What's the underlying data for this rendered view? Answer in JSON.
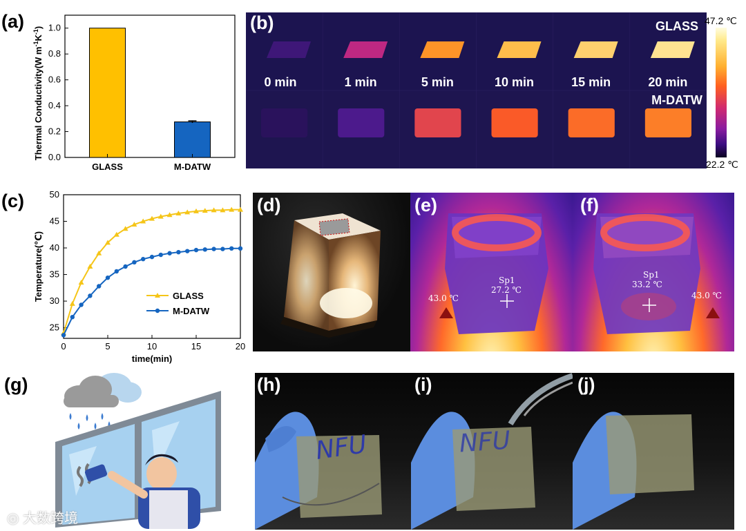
{
  "panel_labels": {
    "a": "(a)",
    "b": "(b)",
    "c": "(c)",
    "d": "(d)",
    "e": "(e)",
    "f": "(f)",
    "g": "(g)",
    "h": "(h)",
    "i": "(i)",
    "j": "(j)"
  },
  "chart_data": [
    {
      "type": "bar",
      "panel": "(a)",
      "categories": [
        "GLASS",
        "M-DATW"
      ],
      "values": [
        1.0,
        0.275
      ],
      "error": [
        0,
        0.008
      ],
      "colors": [
        "#FFC000",
        "#1565C0"
      ],
      "ylabel_main": "Thermal Conductivity(W m",
      "ylabel_sup1": "-1",
      "ylabel_mid": "K",
      "ylabel_sup2": "-1",
      "ylabel_end": ")",
      "ylim": [
        0,
        1.1
      ],
      "yticks": [
        "0.0",
        "0.2",
        "0.4",
        "0.6",
        "0.8",
        "1.0"
      ]
    },
    {
      "type": "line",
      "panel": "(c)",
      "xlabel": "time(min)",
      "ylabel": "Temperature(℃)",
      "xlim": [
        0,
        20
      ],
      "ylim": [
        23,
        50
      ],
      "xticks": [
        "0",
        "5",
        "10",
        "15",
        "20"
      ],
      "yticks": [
        "25",
        "30",
        "35",
        "40",
        "45",
        "50"
      ],
      "legend_position": "center-right",
      "series": [
        {
          "name": "GLASS",
          "color": "#F5C518",
          "marker": "triangle",
          "x": [
            0,
            1,
            2,
            3,
            4,
            5,
            6,
            7,
            8,
            9,
            10,
            11,
            12,
            13,
            14,
            15,
            16,
            17,
            18,
            19,
            20
          ],
          "y": [
            24.0,
            29.5,
            33.5,
            36.5,
            39.0,
            41.0,
            42.5,
            43.6,
            44.4,
            45.0,
            45.5,
            45.9,
            46.2,
            46.5,
            46.7,
            46.9,
            47.0,
            47.1,
            47.1,
            47.2,
            47.2
          ]
        },
        {
          "name": "M-DATW",
          "color": "#1565C0",
          "marker": "circle",
          "x": [
            0,
            1,
            2,
            3,
            4,
            5,
            6,
            7,
            8,
            9,
            10,
            11,
            12,
            13,
            14,
            15,
            16,
            17,
            18,
            19,
            20
          ],
          "y": [
            23.6,
            27.0,
            29.3,
            31.0,
            32.8,
            34.4,
            35.6,
            36.5,
            37.3,
            37.9,
            38.3,
            38.7,
            39.0,
            39.2,
            39.4,
            39.6,
            39.7,
            39.8,
            39.8,
            39.9,
            39.9
          ]
        }
      ]
    }
  ],
  "thermal_b": {
    "row_labels": [
      "GLASS",
      "M-DATW"
    ],
    "times": [
      "0 min",
      "1 min",
      "5 min",
      "10 min",
      "15 min",
      "20 min"
    ],
    "colorbar_max": "47.2 ℃",
    "colorbar_min": "22.2 ℃",
    "levels_glass": [
      0.15,
      0.45,
      0.75,
      0.85,
      0.9,
      0.95
    ],
    "levels_datw": [
      0.08,
      0.2,
      0.55,
      0.62,
      0.66,
      0.7
    ]
  },
  "panel_e": {
    "spot_label": "Sp1",
    "spot_value": "27.2 ℃",
    "marker_value": "43.0 ℃"
  },
  "panel_f": {
    "spot_label": "Sp1",
    "spot_value": "33.2 ℃",
    "marker_value": "43.0 ℃"
  },
  "photo_text": {
    "h": "NFU",
    "i": "NFU"
  },
  "watermark": "大数跨境"
}
